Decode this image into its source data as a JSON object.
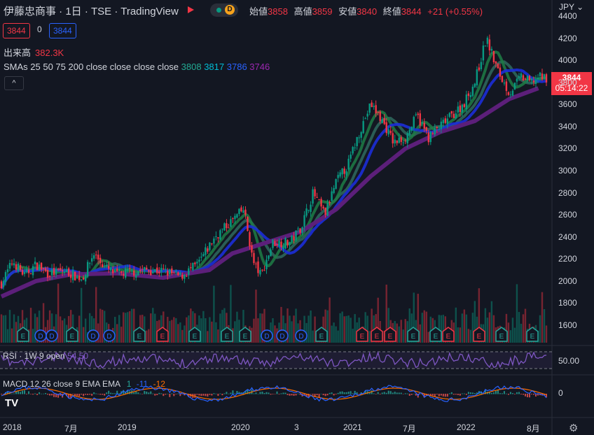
{
  "header": {
    "symbol_title": "伊藤忠商事 · 1日 · TSE · TradingView",
    "badge_d": "D",
    "ohlc": [
      {
        "k": "始値",
        "v": "3858"
      },
      {
        "k": "高値",
        "v": "3859"
      },
      {
        "k": "安値",
        "v": "3840"
      },
      {
        "k": "終値",
        "v": "3844"
      }
    ],
    "change": "+21 (+0.55%)",
    "currency": "JPY"
  },
  "legend": {
    "sell_price": "3844",
    "spread": "0",
    "buy_price": "3844",
    "volume_label": "出来高",
    "volume_value": "382.3K",
    "sma_label": "SMAs 25 50 75 200 close close close close",
    "sma_values": [
      {
        "v": "3808",
        "color": "#22ab94"
      },
      {
        "v": "3817",
        "color": "#00bcd4"
      },
      {
        "v": "3786",
        "color": "#2962ff"
      },
      {
        "v": "3746",
        "color": "#9c27b0"
      }
    ],
    "collapse": "^"
  },
  "last_price": {
    "value": "3844",
    "countdown": "05:14:22"
  },
  "rsi": {
    "label": "RSI · 1W 9 open",
    "value": "54.50",
    "axis_value": "50.00"
  },
  "macd": {
    "label": "MACD 12 26 close 9 EMA EMA",
    "v1": "1",
    "v2": "-11",
    "v3": "-12",
    "axis_value": "0"
  },
  "colors": {
    "bg": "#131722",
    "up": "#089981",
    "down": "#f23645",
    "sma25": "#1e7d45",
    "sma50": "#2f6a5e",
    "sma75": "#1c2ed8",
    "sma200": "#5c1f7a",
    "rsi": "#7e57c2",
    "macd": "#2962ff",
    "signal": "#ff6d00"
  },
  "chart_data": {
    "type": "candlestick",
    "title": "",
    "y_ticks": [
      "4400",
      "4200",
      "4000",
      "3800",
      "3600",
      "3400",
      "3200",
      "3000",
      "2800",
      "2600",
      "2400",
      "2200",
      "2000",
      "1800",
      "1600"
    ],
    "x_ticks": [
      "2018",
      "7月",
      "2019",
      "2020",
      "3",
      "2021",
      "7月",
      "2022",
      "8月"
    ],
    "ylim": [
      1500,
      4450
    ],
    "series_close": [
      [
        2018.0,
        1980
      ],
      [
        2018.1,
        2180
      ],
      [
        2018.2,
        2050
      ],
      [
        2018.3,
        2150
      ],
      [
        2018.4,
        2070
      ],
      [
        2018.55,
        2090
      ],
      [
        2018.7,
        2020
      ],
      [
        2018.8,
        2250
      ],
      [
        2018.9,
        2120
      ],
      [
        2019.0,
        2060
      ],
      [
        2019.1,
        2080
      ],
      [
        2019.25,
        2100
      ],
      [
        2019.4,
        2090
      ],
      [
        2019.55,
        2040
      ],
      [
        2019.7,
        2150
      ],
      [
        2019.85,
        2400
      ],
      [
        2020.0,
        2550
      ],
      [
        2020.1,
        2650
      ],
      [
        2020.18,
        2170
      ],
      [
        2020.25,
        2050
      ],
      [
        2020.35,
        2350
      ],
      [
        2020.5,
        2350
      ],
      [
        2020.6,
        2500
      ],
      [
        2020.7,
        2800
      ],
      [
        2020.8,
        2600
      ],
      [
        2020.9,
        2900
      ],
      [
        2021.0,
        3050
      ],
      [
        2021.1,
        3350
      ],
      [
        2021.2,
        3600
      ],
      [
        2021.3,
        3450
      ],
      [
        2021.4,
        3250
      ],
      [
        2021.5,
        3300
      ],
      [
        2021.6,
        3500
      ],
      [
        2021.7,
        3300
      ],
      [
        2021.8,
        3400
      ],
      [
        2021.9,
        3500
      ],
      [
        2022.0,
        3600
      ],
      [
        2022.1,
        3800
      ],
      [
        2022.2,
        4200
      ],
      [
        2022.3,
        3900
      ],
      [
        2022.4,
        3700
      ],
      [
        2022.5,
        3850
      ],
      [
        2022.58,
        3800
      ],
      [
        2022.65,
        3844
      ]
    ],
    "sma200": [
      [
        2018.0,
        1860
      ],
      [
        2018.3,
        2000
      ],
      [
        2018.6,
        2060
      ],
      [
        2019.0,
        2070
      ],
      [
        2019.4,
        2030
      ],
      [
        2019.8,
        2100
      ],
      [
        2020.0,
        2250
      ],
      [
        2020.3,
        2350
      ],
      [
        2020.6,
        2450
      ],
      [
        2020.9,
        2650
      ],
      [
        2021.2,
        2950
      ],
      [
        2021.5,
        3200
      ],
      [
        2021.8,
        3350
      ],
      [
        2022.1,
        3450
      ],
      [
        2022.4,
        3650
      ],
      [
        2022.65,
        3746
      ]
    ],
    "rsi_value": 54.5,
    "macd": {
      "macd": 1,
      "signal": -11,
      "hist": -12
    }
  }
}
